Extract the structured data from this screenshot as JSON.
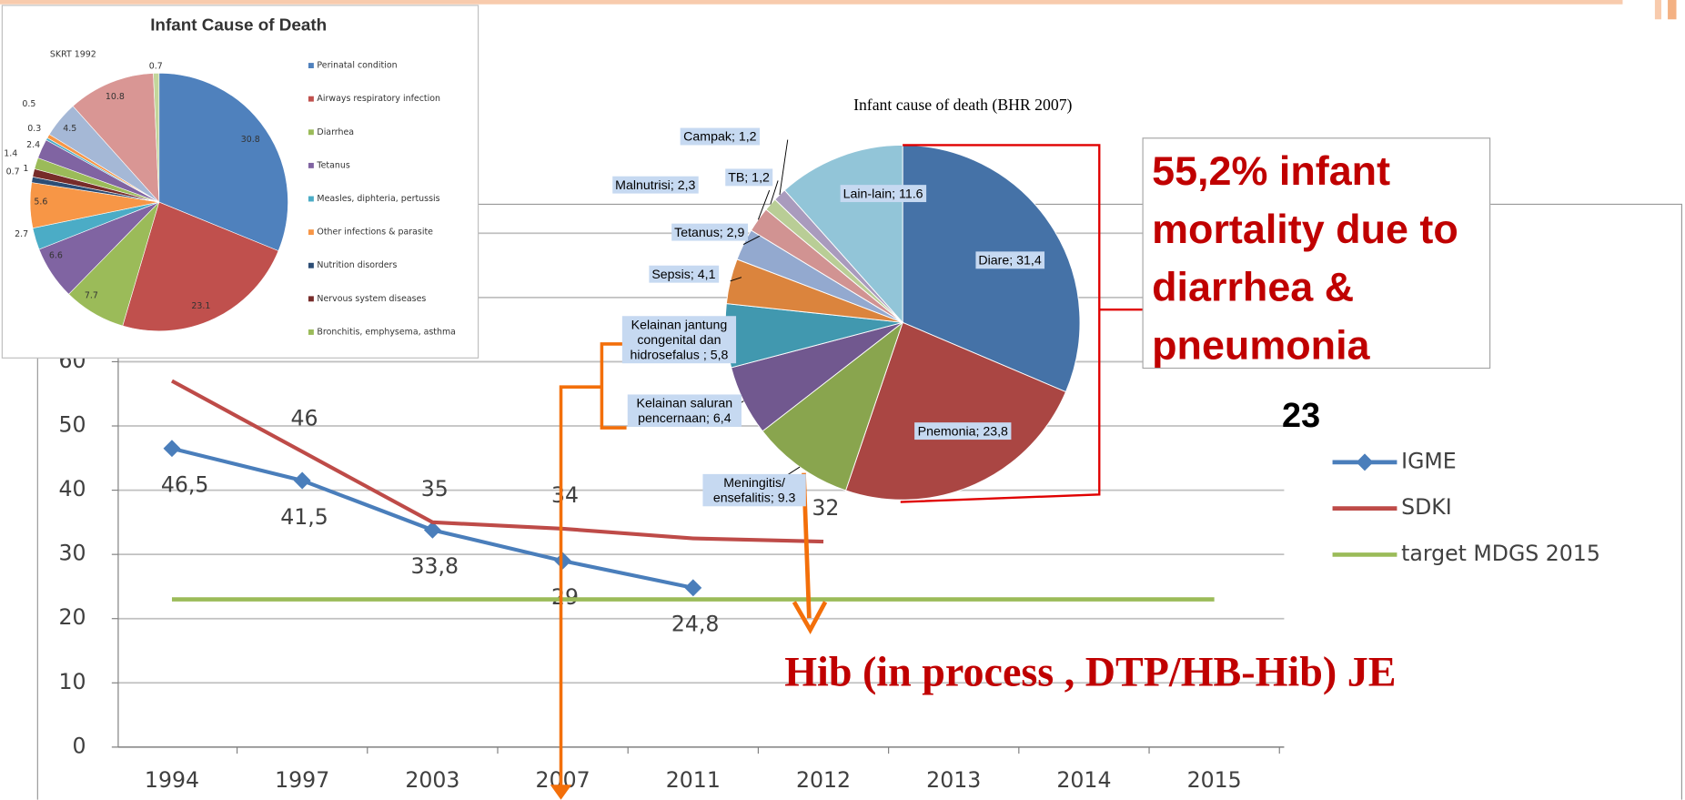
{
  "chart_data": [
    {
      "type": "line",
      "categories": [
        "1994",
        "1997",
        "2003",
        "2007",
        "2011",
        "2012",
        "2013",
        "2014",
        "2015"
      ],
      "series": [
        {
          "name": "IGME",
          "color": "#4a7ebb",
          "values": [
            46.5,
            41.5,
            33.8,
            29,
            24.8,
            null,
            null,
            null,
            null
          ],
          "value_labels": [
            "46,5",
            "41,5",
            "33,8",
            "29",
            "24,8",
            null,
            null,
            null,
            null
          ]
        },
        {
          "name": "SDKI",
          "color": "#be4b48",
          "values": [
            57,
            46,
            35,
            34,
            32.5,
            32,
            null,
            null,
            null
          ],
          "value_labels": [
            null,
            "46",
            "35",
            "34",
            null,
            "32",
            null,
            null,
            null
          ]
        },
        {
          "name": "target MDGS 2015",
          "color": "#9bbb59",
          "values": [
            23,
            23,
            23,
            23,
            23,
            23,
            23,
            23,
            23
          ]
        }
      ],
      "ylim": [
        0,
        80
      ],
      "yticks": [
        0,
        10,
        20,
        30,
        40,
        50,
        60,
        70,
        80
      ],
      "grid": true,
      "legend": "right"
    },
    {
      "type": "pie",
      "title": "Infant Cause of Death",
      "subtitle": "SKRT 1992",
      "categories": [
        "Perinatal condition",
        "Airways respiratory infection",
        "Diarrhea",
        "Tetanus",
        "Measles, diphteria, pertussis",
        "Other infections & parasite",
        "Nutrition disorders",
        "Nervous system diseases",
        "Bronchitis, emphysema, asthma",
        null,
        null,
        null,
        null,
        null,
        null
      ],
      "values": [
        30.8,
        23.1,
        7.7,
        6.6,
        2.7,
        5.6,
        0.7,
        1,
        1.4,
        2.4,
        0.3,
        0.5,
        4.5,
        10.8,
        0.7
      ],
      "colors": [
        "#4f81bd",
        "#c0504d",
        "#9bbb59",
        "#8064a2",
        "#4bacc6",
        "#f79646",
        "#2c4d75",
        "#772c2a",
        "#9bbb59",
        "#8064a2",
        "#4bacc6",
        "#f79646",
        "#a5b8d6",
        "#d99694",
        "#c3d69b"
      ]
    },
    {
      "type": "pie",
      "title": "Infant cause of death (BHR 2007)",
      "values": [
        31.4,
        23.8,
        9.3,
        6.4,
        5.8,
        4.1,
        2.9,
        2.3,
        1.2,
        1.2,
        11.6
      ],
      "value_labels": [
        "Diare; 31,4",
        "Pnemonia; 23,8",
        "Meningitis/ ensefalitis; 9.3",
        "Kelainan saluran pencernaan; 6,4",
        "Kelainan jantung congenital dan hidrosefalus ; 5,8",
        "Sepsis; 4,1",
        "Tetanus; 2,9",
        "Malnutrisi; 2,3",
        "TB; 1,2",
        "Campak; 1,2",
        "Lain-lain; 11.6"
      ],
      "colors": [
        "#4572a7",
        "#aa4643",
        "#89a54e",
        "#71588f",
        "#4198af",
        "#db843d",
        "#93a9cf",
        "#d19392",
        "#b9cd96",
        "#a99bbd",
        "#92c5d8"
      ]
    }
  ],
  "annotations": [
    "55,2% infant mortality due to diarrhea & pneumonia",
    "23",
    "Hib (in process , DTP/HB-Hib) JE"
  ]
}
